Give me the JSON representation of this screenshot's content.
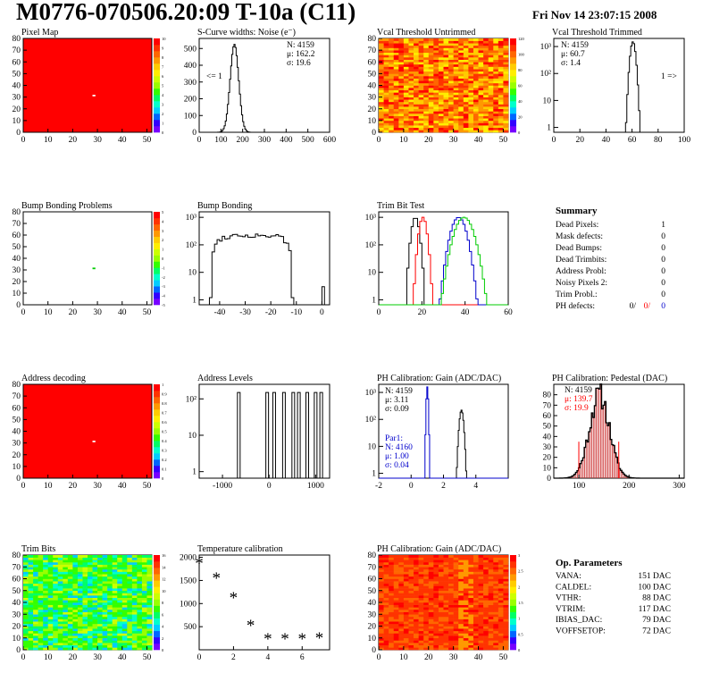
{
  "header": {
    "title": "M0776-070506.20:09 T-10a (C11)",
    "date": "Fri Nov 14 23:07:15 2008"
  },
  "colors": {
    "red": "#ff0000",
    "green": "#00cc00",
    "blue": "#0000cc",
    "black": "#000000"
  },
  "palette": [
    "#7700ff",
    "#3300ff",
    "#0066ff",
    "#00ccff",
    "#00ffcc",
    "#00ff66",
    "#33ff00",
    "#99ff00",
    "#ccff00",
    "#ffee00",
    "#ffcc00",
    "#ff9900",
    "#ff6600",
    "#ff3300",
    "#ff0000"
  ],
  "chart_data": [
    {
      "id": "pixel-map",
      "type": "heatmap",
      "title": "Pixel Map",
      "xticks": [
        "0",
        "10",
        "20",
        "30",
        "40",
        "50"
      ],
      "yticks": [
        "0",
        "10",
        "20",
        "30",
        "40",
        "50",
        "60",
        "70",
        "80"
      ],
      "xlim": [
        0,
        52
      ],
      "ylim": [
        0,
        80
      ],
      "fill": "uniform-red",
      "zticks": [
        "0",
        "1",
        "2",
        "3",
        "4",
        "5",
        "6",
        "7",
        "8",
        "9",
        "10"
      ],
      "special_pixel": [
        28,
        31
      ]
    },
    {
      "id": "scurve-noise",
      "type": "histogram",
      "title": "S-Curve widths: Noise (e⁻)",
      "xticks": [
        "0",
        "100",
        "200",
        "300",
        "400",
        "500",
        "600"
      ],
      "xlim": [
        0,
        600
      ],
      "yticks": [
        "0",
        "100",
        "200",
        "300",
        "400",
        "500"
      ],
      "ylim": [
        0,
        560
      ],
      "stats": [
        "N: 4159",
        "μ: 162.2",
        "σ: 19.6"
      ],
      "annotation": "<= 1",
      "shape": {
        "mean": 162.2,
        "sigma": 19.6,
        "peak": 525
      }
    },
    {
      "id": "vcal-untrimmed",
      "type": "heatmap",
      "title": "Vcal Threshold Untrimmed",
      "xticks": [
        "0",
        "10",
        "20",
        "30",
        "40",
        "50"
      ],
      "yticks": [
        "0",
        "10",
        "20",
        "30",
        "40",
        "50",
        "60",
        "70",
        "80"
      ],
      "xlim": [
        0,
        52
      ],
      "ylim": [
        0,
        80
      ],
      "fill": "orange-noise",
      "zticks": [
        "0",
        "20",
        "40",
        "60",
        "80",
        "100",
        "120"
      ]
    },
    {
      "id": "vcal-trimmed",
      "type": "histogram",
      "log_y": true,
      "title": "Vcal Threshold Trimmed",
      "xticks": [
        "0",
        "20",
        "40",
        "60",
        "80",
        "100"
      ],
      "xlim": [
        0,
        100
      ],
      "yticks": [
        "1",
        "10",
        "10²",
        "10³"
      ],
      "stats": [
        "N: 4159",
        "μ: 60.7",
        "σ:  1.4"
      ],
      "annotation": "1 =>",
      "shape": {
        "mean": 60.7,
        "sigma": 1.4,
        "peak": 1500
      }
    },
    {
      "id": "bump-map",
      "type": "heatmap",
      "title": "Bump Bonding Problems",
      "xticks": [
        "0",
        "10",
        "20",
        "30",
        "40",
        "50"
      ],
      "yticks": [
        "0",
        "10",
        "20",
        "30",
        "40",
        "50",
        "60",
        "70",
        "80"
      ],
      "xlim": [
        0,
        52
      ],
      "ylim": [
        0,
        80
      ],
      "fill": "empty",
      "zticks": [
        "-5",
        "-4",
        "-3",
        "-2",
        "-1",
        "0",
        "1",
        "2",
        "3",
        "4",
        "5"
      ],
      "special_pixel": [
        28,
        31
      ]
    },
    {
      "id": "bump-bonding",
      "type": "histogram",
      "log_y": true,
      "title": "Bump Bonding",
      "xticks": [
        "-40",
        "-30",
        "-20",
        "-10",
        "0"
      ],
      "xlim": [
        -48,
        3
      ],
      "yticks": [
        "1",
        "10",
        "10²",
        "10³"
      ],
      "shape": {
        "range": [
          -44,
          -12
        ],
        "level": 220
      }
    },
    {
      "id": "trim-bit-test",
      "type": "histogram",
      "log_y": true,
      "title": "Trim Bit Test",
      "xticks": [
        "0",
        "20",
        "40",
        "60"
      ],
      "xlim": [
        0,
        60
      ],
      "yticks": [
        "1",
        "10",
        "10²",
        "10³"
      ],
      "series": [
        {
          "color": "black",
          "mean": 17,
          "sigma": 1.2
        },
        {
          "color": "red",
          "mean": 20.5,
          "sigma": 1.2
        },
        {
          "color": "blue",
          "mean": 37,
          "sigma": 2.3
        },
        {
          "color": "green",
          "mean": 39.5,
          "sigma": 2.8
        }
      ]
    },
    {
      "id": "summary",
      "type": "table",
      "title": "Summary",
      "rows": [
        {
          "label": "Dead Pixels:",
          "value": "1"
        },
        {
          "label": "Mask defects:",
          "value": "0"
        },
        {
          "label": "Dead Bumps:",
          "value": "0"
        },
        {
          "label": "Dead Trimbits:",
          "value": "0"
        },
        {
          "label": "Address Probl:",
          "value": "0"
        },
        {
          "label": "Noisy Pixels 2:",
          "value": "0"
        },
        {
          "label": "Trim Probl.:",
          "value": "0"
        }
      ],
      "ph_defects": {
        "label": "PH defects:",
        "values": [
          "0/",
          "0/",
          "0"
        ]
      }
    },
    {
      "id": "address-decoding",
      "type": "heatmap",
      "title": "Address decoding",
      "xticks": [
        "0",
        "10",
        "20",
        "30",
        "40",
        "50"
      ],
      "yticks": [
        "0",
        "10",
        "20",
        "30",
        "40",
        "50",
        "60",
        "70",
        "80"
      ],
      "xlim": [
        0,
        52
      ],
      "ylim": [
        0,
        80
      ],
      "fill": "uniform-red",
      "zticks": [
        "0",
        "0.1",
        "0.2",
        "0.3",
        "0.4",
        "0.5",
        "0.6",
        "0.7",
        "0.8",
        "0.9",
        "1"
      ],
      "special_pixel": [
        28,
        31
      ]
    },
    {
      "id": "address-levels",
      "type": "histogram",
      "log_y": true,
      "title": "Address Levels",
      "xticks": [
        "-1000",
        "0",
        "1000"
      ],
      "xlim": [
        -1500,
        1300
      ],
      "yticks": [
        "1",
        "10",
        "10²"
      ],
      "peaks": [
        -650,
        -40,
        110,
        320,
        520,
        640,
        820,
        1000,
        1120
      ]
    },
    {
      "id": "ph-gain",
      "type": "histogram",
      "log_y": true,
      "title": "PH Calibration: Gain (ADC/DAC)",
      "xticks": [
        "-2",
        "0",
        "2",
        "4"
      ],
      "xlim": [
        -2,
        6
      ],
      "yticks": [
        "1",
        "10",
        "10²",
        "10³"
      ],
      "stats": [
        "N: 4159",
        "μ: 3.11",
        "σ: 0.09"
      ],
      "par_stats": [
        "Par1:",
        "N: 4160",
        "μ: 1.00",
        "σ: 0.04"
      ],
      "series": [
        {
          "color": "black",
          "mean": 3.11,
          "sigma": 0.09
        },
        {
          "color": "blue",
          "mean": 1.0,
          "sigma": 0.04
        }
      ]
    },
    {
      "id": "ph-pedestal",
      "type": "histogram",
      "title": "PH Calibration: Pedestal (DAC)",
      "xticks": [
        "100",
        "200",
        "300"
      ],
      "xlim": [
        50,
        310
      ],
      "yticks": [
        "0",
        "10",
        "20",
        "30",
        "40",
        "50",
        "60",
        "70",
        "80"
      ],
      "ylim": [
        0,
        90
      ],
      "stats": [
        "N: 4159",
        "μ: 139.7",
        "σ: 19.9"
      ],
      "shape": {
        "mean": 139.7,
        "sigma": 19.9,
        "peak": 80
      }
    },
    {
      "id": "trim-bits",
      "type": "heatmap",
      "title": "Trim Bits",
      "xticks": [
        "0",
        "10",
        "20",
        "30",
        "40",
        "50"
      ],
      "yticks": [
        "0",
        "10",
        "20",
        "30",
        "40",
        "50",
        "60",
        "70",
        "80"
      ],
      "xlim": [
        0,
        52
      ],
      "ylim": [
        0,
        80
      ],
      "fill": "green-noise",
      "zticks": [
        "0",
        "2",
        "4",
        "6",
        "8",
        "10",
        "12",
        "14",
        "16"
      ]
    },
    {
      "id": "temperature",
      "type": "scatter",
      "title": "Temperature calibration",
      "xticks": [
        "0",
        "2",
        "4",
        "6"
      ],
      "xlim": [
        0,
        7.6
      ],
      "yticks": [
        "500",
        "1000",
        "1500",
        "2000"
      ],
      "ylim": [
        0,
        2050
      ],
      "x": [
        0,
        1,
        2,
        3,
        4,
        5,
        6,
        7
      ],
      "y": [
        1850,
        1530,
        1100,
        500,
        210,
        210,
        210,
        230
      ]
    },
    {
      "id": "ph-gain-map",
      "type": "heatmap",
      "title": "PH Calibration: Gain (ADC/DAC)",
      "xticks": [
        "0",
        "10",
        "20",
        "30",
        "40",
        "50"
      ],
      "yticks": [
        "0",
        "10",
        "20",
        "30",
        "40",
        "50",
        "60",
        "70",
        "80"
      ],
      "xlim": [
        0,
        52
      ],
      "ylim": [
        0,
        80
      ],
      "fill": "red-noise",
      "zticks": [
        "0",
        "0.5",
        "1",
        "1.5",
        "2",
        "2.5",
        "3"
      ]
    },
    {
      "id": "op-parameters",
      "type": "table",
      "title": "Op. Parameters",
      "rows": [
        {
          "label": "VANA:",
          "value": "151 DAC"
        },
        {
          "label": "CALDEL:",
          "value": "100 DAC"
        },
        {
          "label": "VTHR:",
          "value": "88 DAC"
        },
        {
          "label": "VTRIM:",
          "value": "117 DAC"
        },
        {
          "label": "IBIAS_DAC:",
          "value": "79 DAC"
        },
        {
          "label": "VOFFSETOP:",
          "value": "72 DAC"
        }
      ]
    }
  ]
}
